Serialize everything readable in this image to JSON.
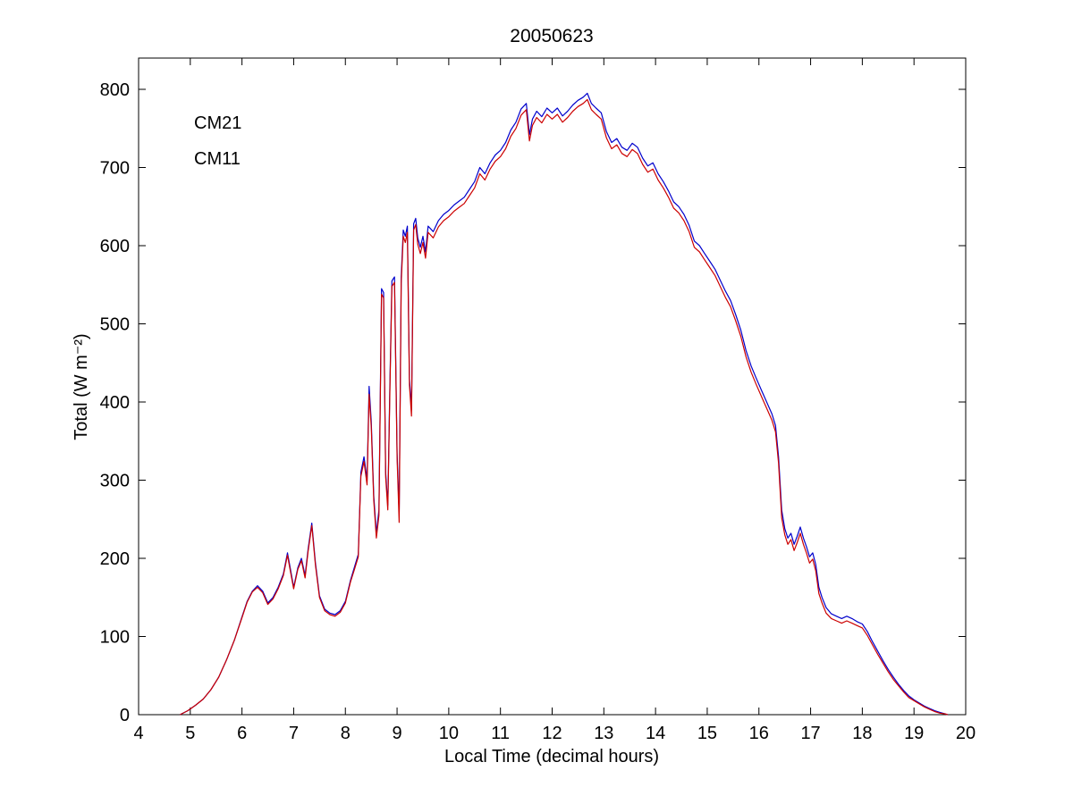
{
  "figure": {
    "background": "#ffffff",
    "axis_color": "#000000"
  },
  "chart_data": {
    "type": "line",
    "title": "20050623",
    "xlabel": "Local Time (decimal hours)",
    "ylabel": "Total (W m⁻²)",
    "xlim": [
      4,
      20
    ],
    "ylim": [
      0,
      840
    ],
    "xticks": [
      4,
      5,
      6,
      7,
      8,
      9,
      10,
      11,
      12,
      13,
      14,
      15,
      16,
      17,
      18,
      19,
      20
    ],
    "yticks": [
      0,
      100,
      200,
      300,
      400,
      500,
      600,
      700,
      800
    ],
    "grid": false,
    "legend_position": "upper-left-inside",
    "x": [
      4.8,
      4.95,
      5.1,
      5.25,
      5.4,
      5.55,
      5.7,
      5.85,
      6.0,
      6.1,
      6.2,
      6.3,
      6.4,
      6.5,
      6.6,
      6.7,
      6.8,
      6.88,
      6.94,
      7.0,
      7.08,
      7.15,
      7.22,
      7.28,
      7.35,
      7.42,
      7.5,
      7.6,
      7.7,
      7.8,
      7.9,
      8.0,
      8.1,
      8.18,
      8.25,
      8.3,
      8.36,
      8.42,
      8.46,
      8.5,
      8.55,
      8.6,
      8.65,
      8.7,
      8.74,
      8.78,
      8.82,
      8.86,
      8.9,
      8.95,
      9.0,
      9.04,
      9.08,
      9.12,
      9.16,
      9.2,
      9.24,
      9.28,
      9.32,
      9.36,
      9.4,
      9.45,
      9.5,
      9.55,
      9.6,
      9.7,
      9.8,
      9.9,
      10.0,
      10.1,
      10.2,
      10.3,
      10.4,
      10.5,
      10.6,
      10.7,
      10.8,
      10.9,
      11.0,
      11.1,
      11.2,
      11.3,
      11.4,
      11.5,
      11.56,
      11.62,
      11.7,
      11.8,
      11.9,
      12.0,
      12.1,
      12.2,
      12.3,
      12.4,
      12.5,
      12.6,
      12.68,
      12.76,
      12.85,
      12.95,
      13.05,
      13.15,
      13.25,
      13.35,
      13.45,
      13.55,
      13.65,
      13.75,
      13.85,
      13.95,
      14.05,
      14.15,
      14.25,
      14.35,
      14.45,
      14.55,
      14.65,
      14.75,
      14.85,
      14.95,
      15.05,
      15.15,
      15.25,
      15.35,
      15.45,
      15.55,
      15.65,
      15.75,
      15.85,
      15.95,
      16.05,
      16.15,
      16.25,
      16.32,
      16.38,
      16.44,
      16.5,
      16.56,
      16.62,
      16.68,
      16.74,
      16.8,
      16.86,
      16.92,
      16.98,
      17.04,
      17.1,
      17.16,
      17.22,
      17.3,
      17.4,
      17.5,
      17.6,
      17.7,
      17.8,
      17.9,
      18.0,
      18.1,
      18.2,
      18.3,
      18.4,
      18.5,
      18.6,
      18.7,
      18.8,
      18.9,
      19.0,
      19.1,
      19.2,
      19.3,
      19.4,
      19.5,
      19.6,
      19.65
    ],
    "series": [
      {
        "name": "CM21",
        "color": "#0000CC",
        "values": [
          0,
          5,
          12,
          20,
          32,
          48,
          70,
          95,
          125,
          145,
          158,
          165,
          158,
          143,
          150,
          163,
          180,
          207,
          185,
          163,
          188,
          200,
          178,
          212,
          245,
          195,
          152,
          135,
          130,
          128,
          133,
          145,
          172,
          190,
          205,
          310,
          330,
          300,
          420,
          375,
          280,
          232,
          262,
          545,
          540,
          310,
          268,
          420,
          555,
          560,
          335,
          258,
          560,
          620,
          612,
          625,
          430,
          390,
          628,
          635,
          610,
          598,
          612,
          592,
          625,
          618,
          632,
          640,
          645,
          652,
          657,
          662,
          672,
          682,
          700,
          692,
          706,
          716,
          722,
          732,
          748,
          758,
          775,
          782,
          742,
          762,
          772,
          765,
          776,
          770,
          776,
          766,
          772,
          780,
          786,
          790,
          795,
          782,
          776,
          770,
          746,
          732,
          737,
          726,
          722,
          731,
          726,
          712,
          702,
          706,
          692,
          682,
          670,
          656,
          650,
          640,
          626,
          606,
          600,
          590,
          580,
          570,
          556,
          542,
          530,
          512,
          492,
          466,
          446,
          430,
          415,
          400,
          385,
          370,
          330,
          262,
          238,
          226,
          232,
          218,
          228,
          240,
          226,
          215,
          202,
          207,
          192,
          163,
          150,
          137,
          129,
          126,
          123,
          126,
          123,
          119,
          116,
          106,
          93,
          81,
          69,
          58,
          48,
          39,
          31,
          24,
          19,
          15,
          11,
          8,
          5,
          3,
          1,
          0
        ]
      },
      {
        "name": "CM11",
        "color": "#CC0000",
        "values": [
          0,
          5,
          12,
          20,
          32,
          48,
          70,
          95,
          124,
          144,
          157,
          163,
          156,
          141,
          148,
          161,
          178,
          204,
          182,
          161,
          186,
          197,
          175,
          209,
          242,
          192,
          150,
          133,
          128,
          126,
          131,
          143,
          170,
          187,
          202,
          305,
          324,
          294,
          410,
          368,
          274,
          226,
          255,
          538,
          533,
          304,
          262,
          412,
          548,
          553,
          328,
          246,
          552,
          612,
          604,
          617,
          422,
          382,
          620,
          627,
          602,
          590,
          604,
          584,
          617,
          610,
          624,
          632,
          637,
          644,
          649,
          654,
          664,
          674,
          692,
          684,
          698,
          708,
          714,
          724,
          740,
          750,
          767,
          774,
          734,
          754,
          764,
          757,
          768,
          762,
          768,
          758,
          764,
          772,
          778,
          782,
          787,
          774,
          768,
          762,
          738,
          724,
          729,
          718,
          714,
          723,
          718,
          704,
          694,
          698,
          684,
          674,
          662,
          648,
          642,
          632,
          618,
          598,
          592,
          582,
          572,
          562,
          548,
          534,
          522,
          504,
          484,
          458,
          438,
          422,
          407,
          392,
          377,
          362,
          322,
          252,
          230,
          218,
          224,
          210,
          220,
          232,
          218,
          207,
          194,
          199,
          184,
          155,
          143,
          130,
          123,
          120,
          117,
          120,
          117,
          114,
          111,
          101,
          89,
          77,
          66,
          55,
          45,
          37,
          29,
          22,
          18,
          14,
          10,
          7,
          4,
          2,
          1,
          0
        ]
      }
    ]
  }
}
